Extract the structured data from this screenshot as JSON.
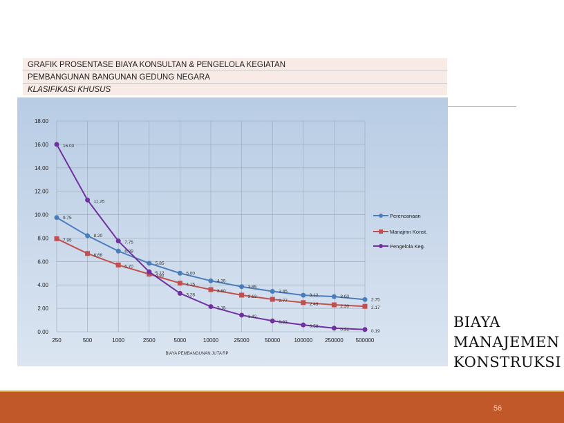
{
  "header": {
    "line1": "GRAFIK PROSENTASE BIAYA KONSULTAN & PENGELOLA KEGIATAN",
    "line2": "PEMBANGUNAN BANGUNAN GEDUNG NEGARA",
    "line3": "KLASIFIKASI KHUSUS"
  },
  "side_title": [
    "BIAYA",
    "MANAJEMEN",
    "KONSTRUKSI"
  ],
  "page_number": "56",
  "colors": {
    "footer": "#c0582a",
    "accent": "#e8a23a"
  },
  "chart_data": {
    "type": "line",
    "title": "",
    "xlabel": "BIAYA PEMBANGUNAN JUTA RP",
    "ylabel": "",
    "categories": [
      "250",
      "500",
      "1000",
      "2500",
      "5000",
      "10000",
      "25000",
      "50000",
      "100000",
      "250000",
      "500000"
    ],
    "ylim": [
      0,
      18
    ],
    "yticks": [
      "0.00",
      "2.00",
      "4.00",
      "6.00",
      "8.00",
      "10.00",
      "12.00",
      "14.00",
      "16.00",
      "18.00"
    ],
    "grid": true,
    "legend": "right",
    "series": [
      {
        "name": "Perencanaan",
        "color": "#4a7ebb",
        "values": [
          9.75,
          8.2,
          6.89,
          5.85,
          5.0,
          4.35,
          3.85,
          3.45,
          3.12,
          3.0,
          2.75
        ],
        "labels": [
          "9.75",
          "8.20",
          "6.89",
          "5.85",
          "5.00",
          "4.35",
          "3.85",
          "3.45",
          "3.12",
          "3.00",
          "2.75"
        ]
      },
      {
        "name": "Manajmn Konst.",
        "color": "#c0504d",
        "values": [
          7.95,
          6.68,
          5.7,
          4.92,
          4.15,
          3.6,
          3.13,
          2.77,
          2.49,
          2.3,
          2.17
        ],
        "labels": [
          "7.95",
          "6.68",
          "5.70",
          "4.92",
          "4.15",
          "3.60",
          "3.13",
          "2.77",
          "2.49",
          "2.30",
          "2.17"
        ]
      },
      {
        "name": "Pengelola Keg.",
        "color": "#7030a0",
        "values": [
          16.0,
          11.25,
          7.75,
          5.12,
          3.28,
          2.15,
          1.42,
          0.93,
          0.58,
          0.31,
          0.19
        ],
        "labels": [
          "16.00",
          "11.25",
          "7.75",
          "5.12",
          "3.28",
          "2.15",
          "1.42",
          "0.93",
          "0.58",
          "0.31",
          "0.19"
        ]
      }
    ]
  }
}
